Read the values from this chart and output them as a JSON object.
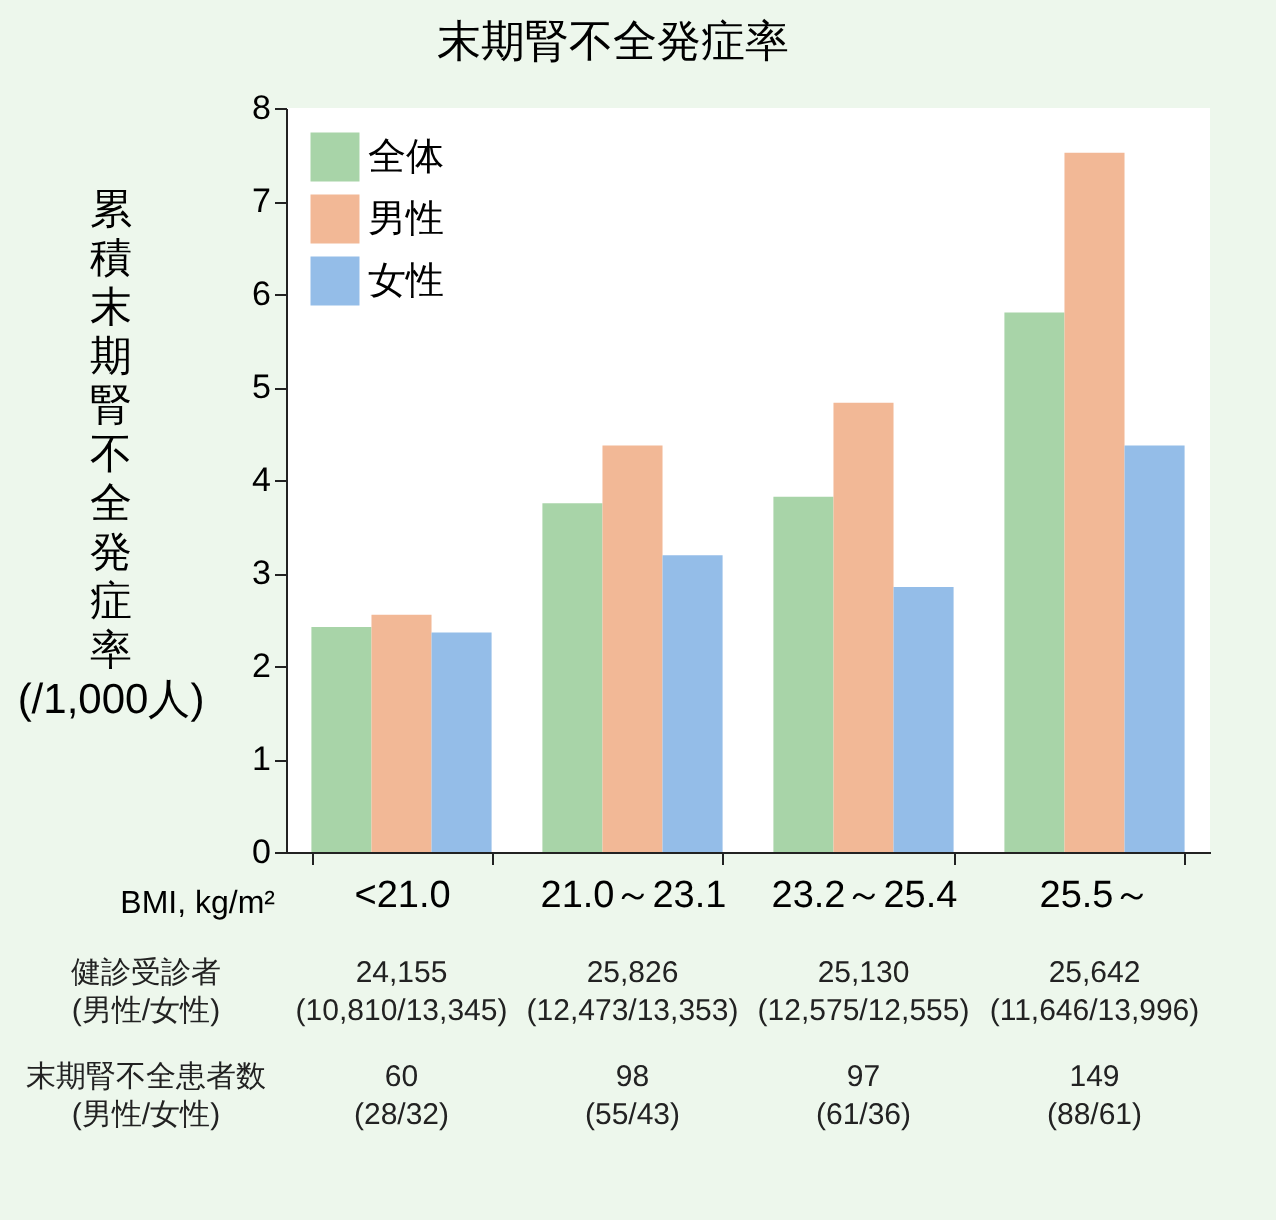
{
  "chart_data": {
    "type": "bar",
    "title": "末期腎不全発症率",
    "xlabel": "BMI, kg/m²",
    "ylabel": "累積末期腎不全発症率(/1,000人)",
    "categories": [
      "<21.0",
      "21.0～23.1",
      "23.2～25.4",
      "25.5～"
    ],
    "series": [
      {
        "name": "全体",
        "color": "#a8d4a8",
        "values": [
          2.42,
          3.75,
          3.82,
          5.8
        ]
      },
      {
        "name": "男性",
        "color": "#f2b896",
        "values": [
          2.55,
          4.37,
          4.83,
          7.52
        ]
      },
      {
        "name": "女性",
        "color": "#94bde8",
        "values": [
          2.36,
          3.19,
          2.85,
          4.37
        ]
      }
    ],
    "ylim": [
      0,
      8
    ],
    "yticks": [
      0,
      1,
      2,
      3,
      4,
      5,
      6,
      7,
      8
    ],
    "grid": false,
    "legend": "top left",
    "annotations": [
      "健診受診者\n(男性/女性)",
      "24,155\n(10,810/13,345)",
      "25,826\n(12,473/13,353)",
      "25,130\n(12,575/12,555)",
      "25,642\n(11,646/13,996)",
      "末期腎不全患者数\n(男性/女性)",
      "60\n(28/32)",
      "98\n(55/43)",
      "97\n(61/36)",
      "149\n(88/61)"
    ]
  }
}
